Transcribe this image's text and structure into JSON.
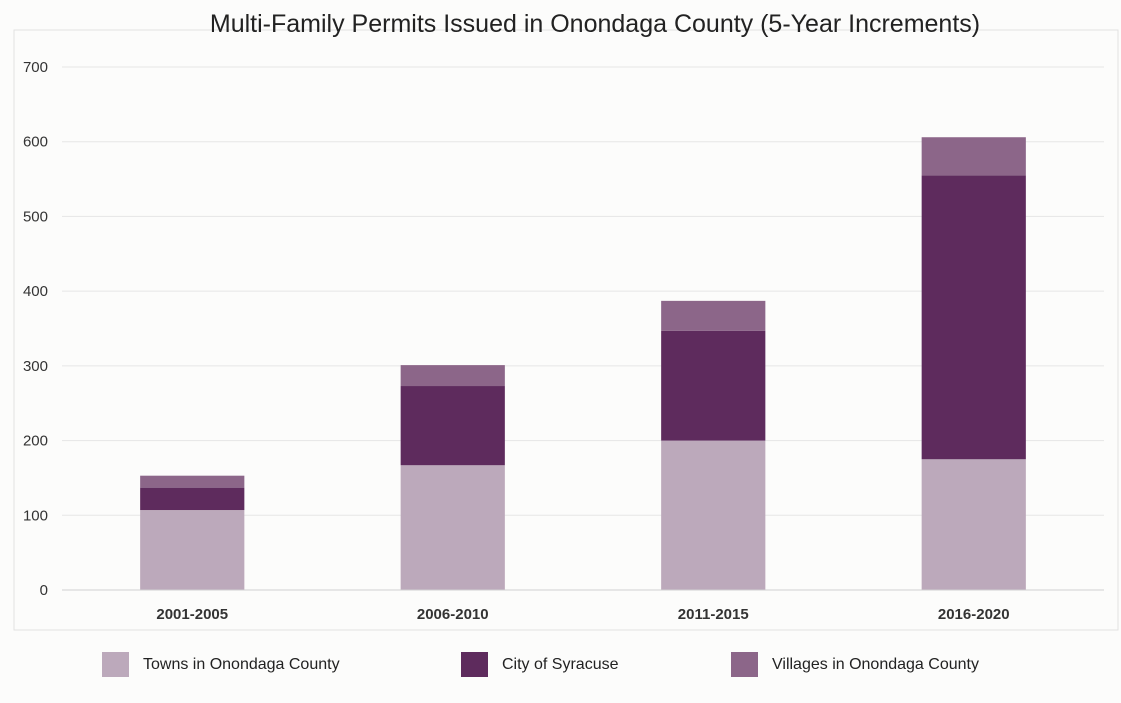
{
  "chart_data": {
    "type": "bar",
    "stacked": true,
    "title": "Multi-Family Permits Issued in Onondaga County (5-Year Increments)",
    "xlabel": "",
    "ylabel": "",
    "categories": [
      "2001-2005",
      "2006-2010",
      "2011-2015",
      "2016-2020"
    ],
    "ylim": [
      0,
      700
    ],
    "yticks": [
      0,
      100,
      200,
      300,
      400,
      500,
      600,
      700
    ],
    "grid": true,
    "legend_position": "bottom",
    "series": [
      {
        "name": "Towns in Onondaga County",
        "color": "#bca9bb",
        "values": [
          107,
          167,
          200,
          175
        ]
      },
      {
        "name": "City of Syracuse",
        "color": "#5e2b5d",
        "values": [
          30,
          106,
          147,
          380
        ]
      },
      {
        "name": "Villages in Onondaga County",
        "color": "#8c6689",
        "values": [
          16,
          28,
          40,
          51
        ]
      }
    ]
  }
}
